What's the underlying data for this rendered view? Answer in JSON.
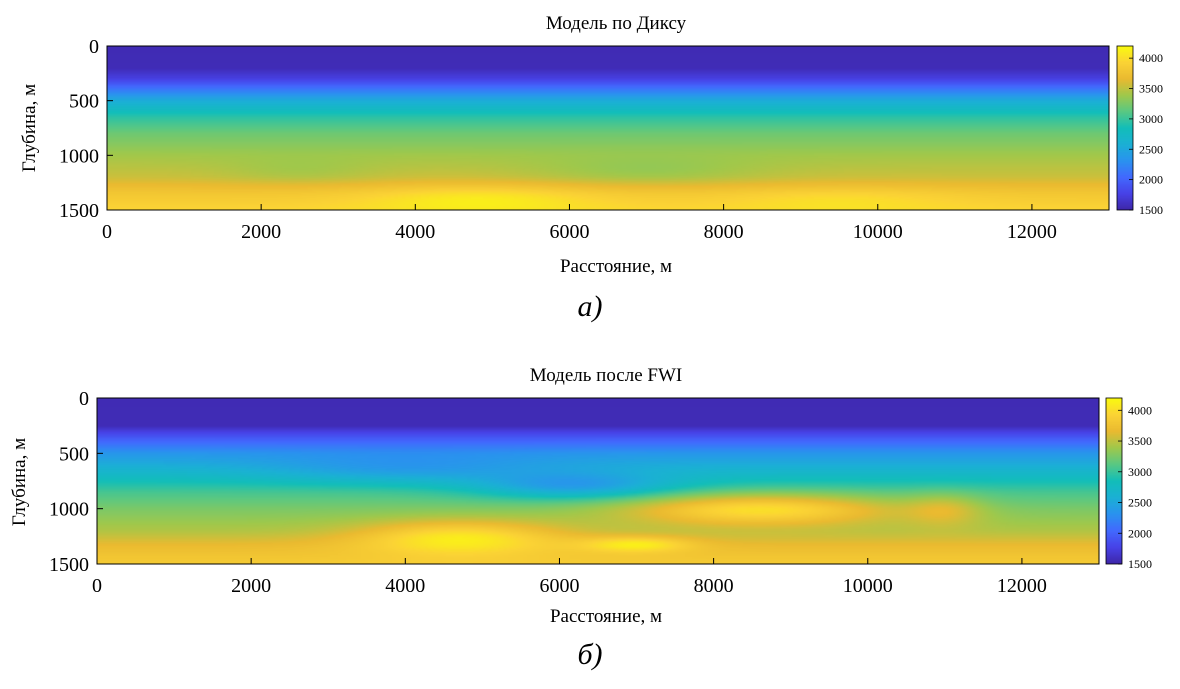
{
  "chart_data": [
    {
      "type": "heatmap",
      "title": "Модель по Диксу",
      "xlabel": "Расстояние, м",
      "ylabel": "Глубина, м",
      "xlim": [
        0,
        13000
      ],
      "ylim": [
        1500,
        0
      ],
      "x_ticks": [
        "0",
        "2000",
        "4000",
        "6000",
        "8000",
        "10000",
        "12000"
      ],
      "y_ticks": [
        "0",
        "500",
        "1000",
        "1500"
      ],
      "colorbar": {
        "min": 1500,
        "max": 4200,
        "ticks": [
          "1500",
          "2000",
          "2500",
          "3000",
          "3500",
          "4000"
        ]
      },
      "colormap": "parula",
      "depth_profile": [
        {
          "depth": 0,
          "velocity": 1550
        },
        {
          "depth": 200,
          "velocity": 1560
        },
        {
          "depth": 300,
          "velocity": 1750
        },
        {
          "depth": 400,
          "velocity": 2150
        },
        {
          "depth": 500,
          "velocity": 2550
        },
        {
          "depth": 650,
          "velocity": 2950
        },
        {
          "depth": 800,
          "velocity": 3200
        },
        {
          "depth": 1000,
          "velocity": 3400
        },
        {
          "depth": 1200,
          "velocity": 3550
        },
        {
          "depth": 1350,
          "velocity": 3800
        },
        {
          "depth": 1500,
          "velocity": 3950
        }
      ],
      "anomalies": [
        {
          "x": 4800,
          "depth": 1400,
          "rx": 1500,
          "rd": 130,
          "delta": 250
        },
        {
          "x": 9500,
          "depth": 1400,
          "rx": 1500,
          "rd": 120,
          "delta": 150
        },
        {
          "x": 7000,
          "depth": 1150,
          "rx": 1500,
          "rd": 130,
          "delta": -150
        },
        {
          "x": 2500,
          "depth": 1150,
          "rx": 1000,
          "rd": 120,
          "delta": -100
        }
      ],
      "caption": "а)"
    },
    {
      "type": "heatmap",
      "title": "Модель после FWI",
      "xlabel": "Расстояние, м",
      "ylabel": "Глубина, м",
      "xlim": [
        0,
        13000
      ],
      "ylim": [
        1500,
        0
      ],
      "x_ticks": [
        "0",
        "2000",
        "4000",
        "6000",
        "8000",
        "10000",
        "12000"
      ],
      "y_ticks": [
        "0",
        "500",
        "1000",
        "1500"
      ],
      "colorbar": {
        "min": 1500,
        "max": 4200,
        "ticks": [
          "1500",
          "2000",
          "2500",
          "3000",
          "3500",
          "4000"
        ]
      },
      "colormap": "parula",
      "depth_profile": [
        {
          "depth": 0,
          "velocity": 1550
        },
        {
          "depth": 250,
          "velocity": 1560
        },
        {
          "depth": 350,
          "velocity": 1900
        },
        {
          "depth": 500,
          "velocity": 2350
        },
        {
          "depth": 700,
          "velocity": 2750
        },
        {
          "depth": 850,
          "velocity": 3050
        },
        {
          "depth": 1000,
          "velocity": 3250
        },
        {
          "depth": 1200,
          "velocity": 3450
        },
        {
          "depth": 1350,
          "velocity": 3700
        },
        {
          "depth": 1500,
          "velocity": 3850
        }
      ],
      "anomalies": [
        {
          "x": 8600,
          "depth": 1000,
          "rx": 1700,
          "rd": 140,
          "delta": 750
        },
        {
          "x": 4700,
          "depth": 1250,
          "rx": 1300,
          "rd": 150,
          "delta": 550
        },
        {
          "x": 7000,
          "depth": 1320,
          "rx": 700,
          "rd": 70,
          "delta": 450
        },
        {
          "x": 6200,
          "depth": 800,
          "rx": 1300,
          "rd": 120,
          "delta": -550
        },
        {
          "x": 4000,
          "depth": 650,
          "rx": 1800,
          "rd": 130,
          "delta": -250
        },
        {
          "x": 11000,
          "depth": 1000,
          "rx": 500,
          "rd": 150,
          "delta": 300
        }
      ],
      "caption": "б)"
    }
  ]
}
